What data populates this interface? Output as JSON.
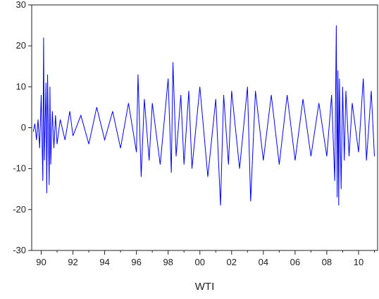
{
  "chart_data": {
    "type": "line",
    "title": "",
    "xlabel": "WTI",
    "ylabel": "",
    "xlim": [
      1989.4,
      2011.2
    ],
    "ylim": [
      -30,
      30
    ],
    "grid": false,
    "series_color": "#0000ff",
    "y_ticks": [
      30,
      20,
      10,
      0,
      -10,
      -20,
      -30
    ],
    "y_tick_labels": [
      "30",
      "20",
      "10",
      "0",
      "-10",
      "-20",
      "-30"
    ],
    "x_ticks": [
      1990,
      1992,
      1994,
      1996,
      1998,
      2000,
      2002,
      2004,
      2006,
      2008,
      2010
    ],
    "x_tick_labels": [
      "90",
      "92",
      "94",
      "96",
      "98",
      "00",
      "02",
      "04",
      "06",
      "08",
      "10"
    ],
    "series": [
      {
        "name": "",
        "x": [
          1989.5,
          1989.6,
          1989.7,
          1989.8,
          1989.9,
          1990.0,
          1990.1,
          1990.15,
          1990.2,
          1990.3,
          1990.35,
          1990.4,
          1990.5,
          1990.55,
          1990.6,
          1990.7,
          1990.8,
          1990.9,
          1991.0,
          1991.2,
          1991.5,
          1991.8,
          1992.0,
          1992.5,
          1993.0,
          1993.5,
          1994.0,
          1994.5,
          1995.0,
          1995.5,
          1996.0,
          1996.1,
          1996.3,
          1996.5,
          1996.8,
          1997.0,
          1997.5,
          1998.0,
          1998.2,
          1998.3,
          1998.5,
          1998.8,
          1999.0,
          1999.3,
          1999.5,
          2000.0,
          2000.5,
          2001.0,
          2001.3,
          2001.5,
          2001.8,
          2002.0,
          2002.5,
          2003.0,
          2003.2,
          2003.5,
          2004.0,
          2004.5,
          2005.0,
          2005.5,
          2006.0,
          2006.5,
          2007.0,
          2007.5,
          2008.0,
          2008.3,
          2008.5,
          2008.6,
          2008.65,
          2008.7,
          2008.75,
          2008.8,
          2008.9,
          2009.0,
          2009.1,
          2009.2,
          2009.4,
          2009.6,
          2010.0,
          2010.3,
          2010.5,
          2010.8,
          2011.0
        ],
        "y": [
          -1,
          1,
          -3,
          2,
          -5,
          8,
          -13,
          22,
          -8,
          11,
          -16,
          13,
          -14,
          10,
          -9,
          4,
          -5,
          3,
          -4,
          2,
          -3,
          4,
          -2,
          3,
          -4,
          5,
          -3,
          4,
          -5,
          6,
          -6,
          13,
          -12,
          7,
          -8,
          6,
          -9,
          12,
          -11,
          16,
          -7,
          8,
          -9,
          9,
          -10,
          10,
          -12,
          7,
          -19,
          8,
          -9,
          9,
          -10,
          10,
          -18,
          9,
          -8,
          8,
          -9,
          8,
          -8,
          7,
          -7,
          6,
          -7,
          8,
          -13,
          25,
          -17,
          14,
          -19,
          12,
          -15,
          10,
          -8,
          9,
          -7,
          6,
          -6,
          12,
          -8,
          9,
          -7
        ]
      }
    ]
  }
}
